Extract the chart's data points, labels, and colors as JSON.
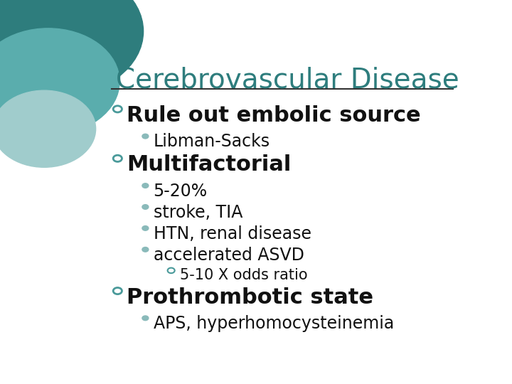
{
  "title": "Cerebrovascular Disease",
  "title_color": "#2E7D7D",
  "title_fontsize": 28,
  "bg_color": "#FFFFFF",
  "line_color": "#333333",
  "bullet_color_main": "#4A9A9A",
  "bullet_color_sub": "#8ABABA",
  "bullet_color_sub2": "#4A9A9A",
  "main_bullet_fontsize": 22,
  "sub_bullet_fontsize": 17,
  "sub2_bullet_fontsize": 15,
  "items": [
    {
      "level": 1,
      "text": "Rule out embolic source",
      "bold": true,
      "children": [
        {
          "level": 2,
          "text": "Libman-Sacks",
          "bold": false,
          "children": []
        }
      ]
    },
    {
      "level": 1,
      "text": "Multifactorial",
      "bold": true,
      "children": [
        {
          "level": 2,
          "text": "5-20%",
          "bold": false,
          "children": []
        },
        {
          "level": 2,
          "text": "stroke, TIA",
          "bold": false,
          "children": []
        },
        {
          "level": 2,
          "text": "HTN, renal disease",
          "bold": false,
          "children": []
        },
        {
          "level": 2,
          "text": "accelerated ASVD",
          "bold": false,
          "children": [
            {
              "level": 3,
              "text": "5-10 X odds ratio",
              "bold": false,
              "children": []
            }
          ]
        }
      ]
    },
    {
      "level": 1,
      "text": "Prothrombotic state",
      "bold": true,
      "children": [
        {
          "level": 2,
          "text": "APS, hyperhomocysteinemia",
          "bold": false,
          "children": []
        }
      ]
    }
  ],
  "circle_color1": "#2E7D7D",
  "circle_color2": "#5AADAD",
  "circle_color3": "#A0CCCC"
}
